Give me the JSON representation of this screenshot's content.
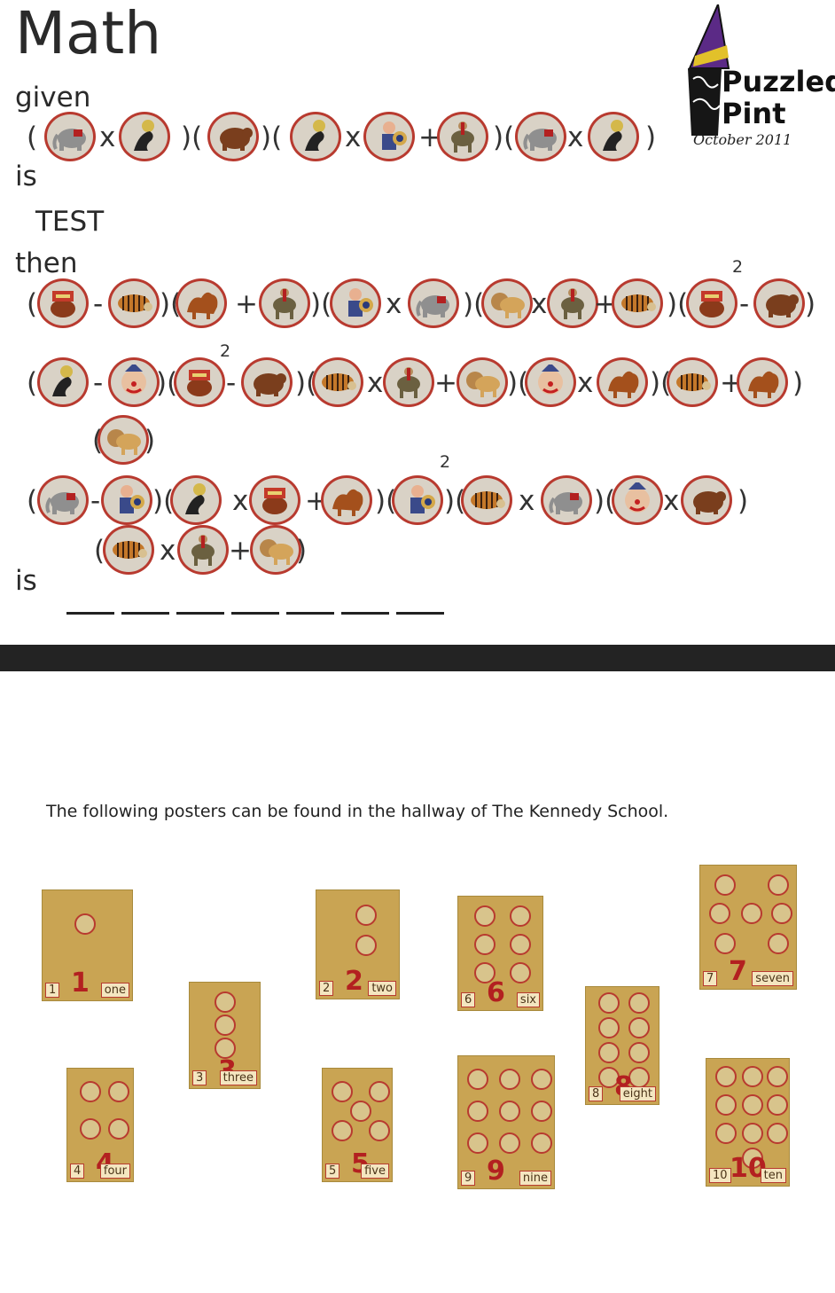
{
  "title": "Math",
  "labels": {
    "given": "given",
    "is1": "is",
    "test": "TEST",
    "then": "then",
    "is2": "is"
  },
  "logo": {
    "line1": "Puzzled",
    "line2": "Pint",
    "date": "October 2011",
    "hat": "DUNCE"
  },
  "operators": {
    "x": "x",
    "plus": "+",
    "minus": "-",
    "open": "(",
    "close": ")",
    "close_open": ")(",
    "squared": "2"
  },
  "icons": {
    "elephant": "elephant-icon",
    "seal": "seal-icon",
    "bear": "bear-icon",
    "musician": "musician-icon",
    "donkey": "donkey-icon",
    "ring-bear": "ring-bear-icon",
    "tiger": "tiger-icon",
    "camel": "camel-icon",
    "clown": "clown-icon",
    "lion": "lion-icon"
  },
  "note": "The following posters can be found in the hallway of The Kennedy School.",
  "posters": [
    {
      "num": "1",
      "big": "1",
      "word": "one"
    },
    {
      "num": "2",
      "big": "2",
      "word": "two"
    },
    {
      "num": "3",
      "big": "3",
      "word": "three"
    },
    {
      "num": "4",
      "big": "4",
      "word": "four"
    },
    {
      "num": "5",
      "big": "5",
      "word": "five"
    },
    {
      "num": "6",
      "big": "6",
      "word": "six"
    },
    {
      "num": "7",
      "big": "7",
      "word": "seven"
    },
    {
      "num": "8",
      "big": "8",
      "word": "eight"
    },
    {
      "num": "9",
      "big": "9",
      "word": "nine"
    },
    {
      "num": "10",
      "big": "10",
      "word": "ten"
    }
  ],
  "poster_labels": {
    "p4": "4",
    "p5": "5"
  },
  "colors": {
    "accent_red": "#b83a2f",
    "poster": "#c9a453",
    "divider": "#232323",
    "logo_purple": "#5b2a86"
  }
}
